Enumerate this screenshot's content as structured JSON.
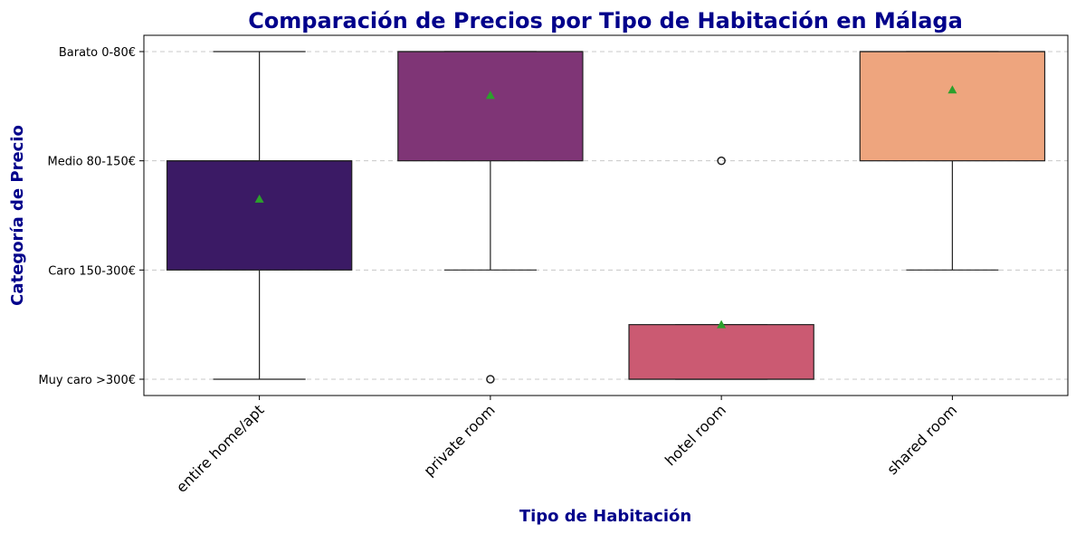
{
  "chart_data": {
    "type": "box",
    "title": "Comparación de Precios por Tipo de Habitación en Málaga",
    "xlabel": "Tipo de Habitación",
    "ylabel": "Categoría de Precio",
    "y_categories": [
      "Barato 0-80€",
      "Medio 80-150€",
      "Caro 150-300€",
      "Muy caro >300€"
    ],
    "y_scale": "category index: 0 = Barato 0-80€ (top) to 3 = Muy caro >300€ (bottom)",
    "grid": "horizontal dashed",
    "legend": "none",
    "categories": [
      "entire home/apt",
      "private room",
      "hotel room",
      "shared room"
    ],
    "boxes": [
      {
        "category": "entire home/apt",
        "color": "#3b1a65",
        "whisker_low": 0,
        "q1": 1,
        "median": 1,
        "q3": 2,
        "whisker_high": 3,
        "mean": 1.35,
        "outliers": []
      },
      {
        "category": "private room",
        "color": "#7f3576",
        "whisker_low": 0,
        "q1": 0,
        "median": 0,
        "q3": 1,
        "whisker_high": 2,
        "mean": 0.4,
        "outliers": [
          3
        ]
      },
      {
        "category": "hotel room",
        "color": "#cb5a72",
        "whisker_low": 2.5,
        "q1": 2.5,
        "median": 3,
        "q3": 3,
        "whisker_high": 3,
        "mean": 2.5,
        "outliers": [
          1
        ]
      },
      {
        "category": "shared room",
        "color": "#eea57e",
        "whisker_low": 0,
        "q1": 0,
        "median": 0,
        "q3": 1,
        "whisker_high": 2,
        "mean": 0.35,
        "outliers": []
      }
    ],
    "mean_marker_color": "#2ca02c"
  }
}
